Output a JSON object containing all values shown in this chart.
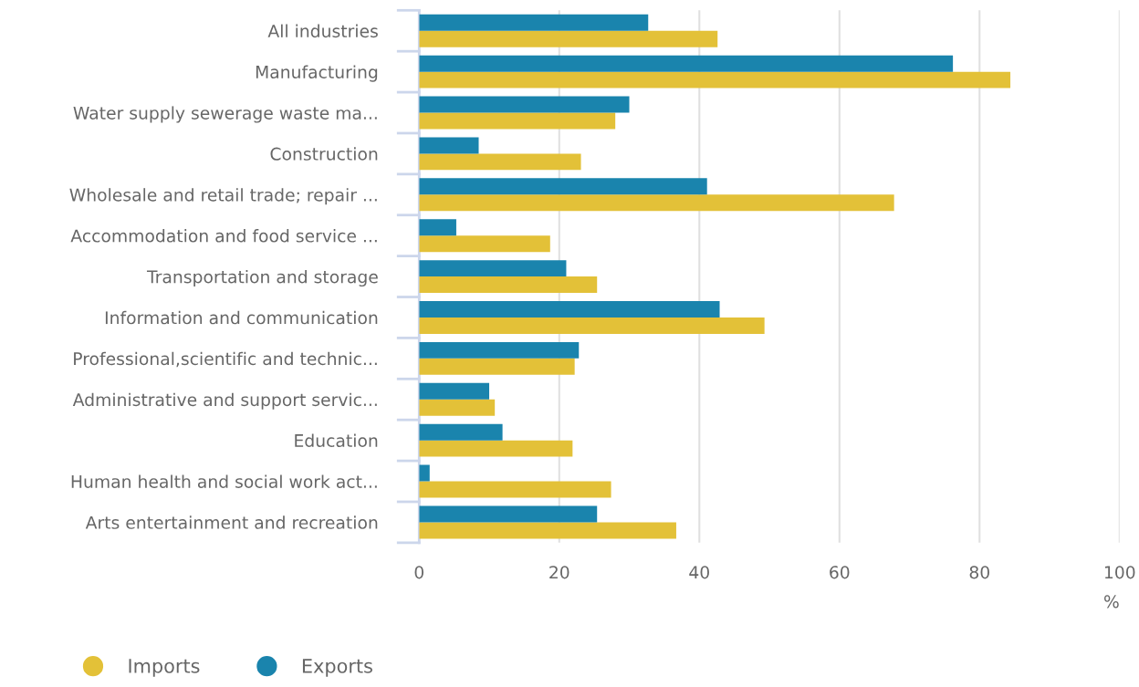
{
  "chart_data": {
    "type": "bar",
    "orientation": "horizontal",
    "categories": [
      "All industries",
      "Manufacturing",
      "Water supply sewerage waste ma...",
      "Construction",
      "Wholesale and retail trade; repair ...",
      "Accommodation and food service ...",
      "Transportation and storage",
      "Information and communication",
      "Professional,scientific and technic...",
      "Administrative and support servic...",
      "Education",
      "Human health and social work act...",
      "Arts entertainment and recreation"
    ],
    "series": [
      {
        "name": "Imports",
        "color": "#e3c138",
        "values": [
          42.6,
          84.4,
          28.0,
          23.1,
          67.8,
          18.7,
          25.4,
          49.3,
          22.2,
          10.8,
          21.9,
          27.4,
          36.7
        ]
      },
      {
        "name": "Exports",
        "color": "#1a84ad",
        "values": [
          32.7,
          76.2,
          30.0,
          8.5,
          41.1,
          5.3,
          21.0,
          42.9,
          22.8,
          10.0,
          11.9,
          1.5,
          25.4
        ]
      }
    ],
    "xlabel": "%",
    "xlim": [
      0,
      100
    ],
    "xticks": [
      0,
      20,
      40,
      60,
      80,
      100
    ],
    "grid": "x",
    "legend": "bottom left"
  }
}
